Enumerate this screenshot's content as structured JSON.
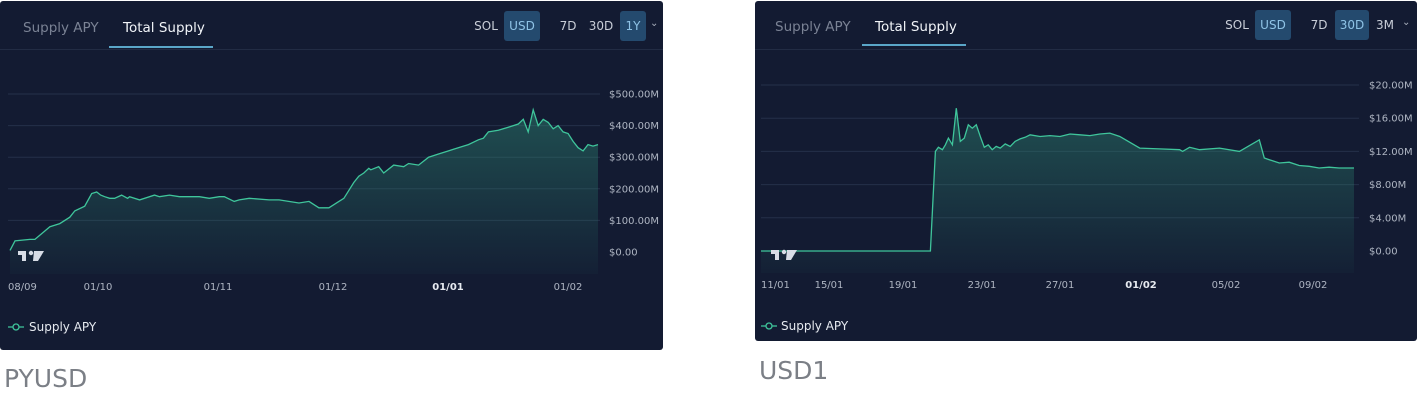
{
  "charts": [
    {
      "asset": "PYUSD",
      "tabs": [
        "Supply APY",
        "Total Supply"
      ],
      "active_tab": "Total Supply",
      "currency_options": [
        "SOL",
        "USD"
      ],
      "active_currency": "USD",
      "range_options": [
        "7D",
        "30D",
        "1Y"
      ],
      "active_range": "1Y",
      "legend": "Supply APY",
      "colors": {
        "line": "#3fc59b",
        "grid": "#253049",
        "active_button": "#244a6e"
      }
    },
    {
      "asset": "USD1",
      "tabs": [
        "Supply APY",
        "Total Supply"
      ],
      "active_tab": "Total Supply",
      "currency_options": [
        "SOL",
        "USD"
      ],
      "active_currency": "USD",
      "range_options": [
        "7D",
        "30D",
        "3M"
      ],
      "active_range": "30D",
      "legend": "Supply APY",
      "colors": {
        "line": "#3fc59b",
        "grid": "#253049",
        "active_button": "#244a6e"
      }
    }
  ],
  "chart_data": [
    {
      "type": "area",
      "title": "Total Supply",
      "series": [
        {
          "name": "Total Supply (USD)",
          "x": [
            0,
            5,
            20,
            25,
            40,
            50,
            60,
            65,
            75,
            82,
            87,
            91,
            95,
            100,
            105,
            112,
            118,
            120,
            130,
            145,
            150,
            160,
            170,
            190,
            200,
            210,
            215,
            225,
            230,
            240,
            260,
            270,
            290,
            300,
            310,
            320,
            330,
            335,
            345,
            350,
            355,
            360,
            362,
            370,
            375,
            385,
            395,
            400,
            410,
            420,
            430,
            440,
            445,
            455,
            460,
            470,
            475,
            480,
            490,
            500,
            510,
            515,
            520,
            525,
            530,
            535,
            540,
            545,
            550,
            555,
            560,
            565,
            570,
            575,
            580,
            585,
            590
          ],
          "values": [
            5,
            35,
            40,
            40,
            80,
            90,
            110,
            130,
            145,
            185,
            190,
            180,
            175,
            170,
            170,
            180,
            170,
            175,
            165,
            180,
            175,
            180,
            175,
            175,
            170,
            175,
            175,
            160,
            165,
            170,
            165,
            165,
            155,
            160,
            140,
            140,
            160,
            170,
            220,
            240,
            250,
            265,
            260,
            270,
            250,
            275,
            270,
            280,
            275,
            300,
            310,
            320,
            325,
            335,
            340,
            355,
            360,
            380,
            385,
            395,
            405,
            420,
            380,
            450,
            400,
            420,
            410,
            390,
            400,
            380,
            375,
            350,
            330,
            320,
            340,
            335,
            340
          ]
        }
      ],
      "x_tick_labels": [
        "08/09",
        "01/10",
        "01/11",
        "01/12",
        "01/01",
        "01/02"
      ],
      "x_tick_positions": [
        0,
        90,
        210,
        325,
        440,
        560
      ],
      "bold_tick": "01/01",
      "y_tick_labels": [
        "$0.00",
        "$100.00M",
        "$200.00M",
        "$300.00M",
        "$400.00M",
        "$500.00M"
      ],
      "ylim": [
        0,
        500
      ]
    },
    {
      "type": "area",
      "title": "Total Supply",
      "series": [
        {
          "name": "Total Supply (USD)",
          "x": [
            0,
            170,
            175,
            178,
            182,
            185,
            188,
            192,
            196,
            200,
            204,
            208,
            212,
            216,
            220,
            224,
            228,
            232,
            236,
            240,
            245,
            250,
            255,
            260,
            265,
            270,
            280,
            290,
            300,
            310,
            320,
            330,
            340,
            350,
            360,
            380,
            400,
            420,
            423,
            430,
            440,
            460,
            480,
            500,
            505,
            510,
            520,
            530,
            540,
            550,
            560,
            570,
            580,
            590,
            595
          ],
          "values": [
            0,
            0,
            12,
            12.5,
            12.2,
            12.8,
            13.6,
            12.8,
            17.2,
            13.2,
            13.6,
            15.2,
            14.8,
            15.2,
            13.8,
            12.5,
            12.8,
            12.2,
            12.6,
            12.4,
            12.9,
            12.6,
            13.2,
            13.5,
            13.7,
            14.0,
            13.8,
            13.9,
            13.8,
            14.1,
            14.0,
            13.9,
            14.1,
            14.2,
            13.8,
            12.4,
            12.3,
            12.2,
            12.0,
            12.5,
            12.2,
            12.4,
            12.0,
            13.4,
            11.2,
            11.0,
            10.6,
            10.7,
            10.3,
            10.2,
            10.0,
            10.1,
            10.0,
            10.0,
            10.0
          ]
        }
      ],
      "x_tick_labels": [
        "11/01",
        "15/01",
        "19/01",
        "23/01",
        "27/01",
        "01/02",
        "05/02",
        "09/02"
      ],
      "x_tick_positions": [
        0,
        68,
        142,
        221,
        299,
        380,
        465,
        552
      ],
      "bold_tick": "01/02",
      "y_tick_labels": [
        "$0.00",
        "$4.00M",
        "$8.00M",
        "$12.00M",
        "$16.00M",
        "$20.00M"
      ],
      "ylim": [
        0,
        20
      ]
    }
  ]
}
